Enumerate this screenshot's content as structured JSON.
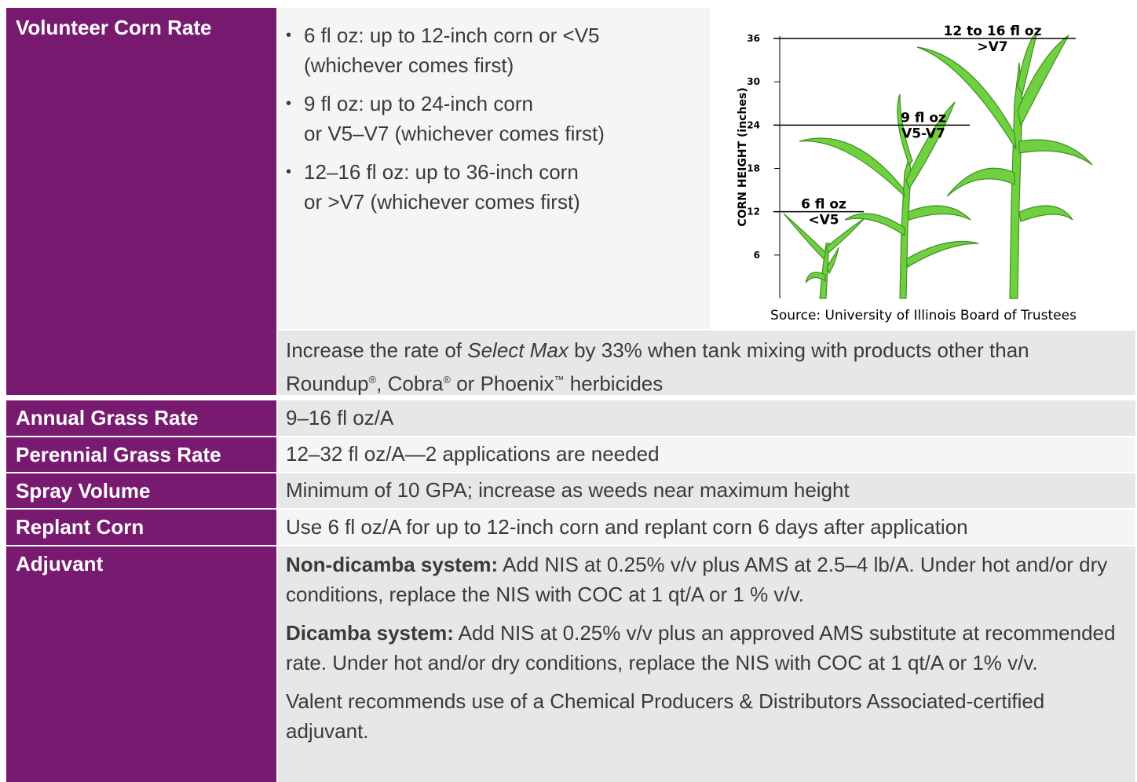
{
  "table": {
    "rows": [
      {
        "label": "Volunteer Corn Rate",
        "bullets": [
          [
            "6 fl oz: up to 12-inch corn or <V5",
            "(whichever comes first)"
          ],
          [
            "9 fl oz: up to 24-inch corn",
            "or V5–V7 (whichever comes first)"
          ],
          [
            "12–16 fl oz: up to 36-inch corn",
            "or >V7 (whichever comes first)"
          ]
        ],
        "figure": {
          "y_axis_label": "CORN HEIGHT (inches)",
          "ylim": [
            0,
            36
          ],
          "yticks": [
            6,
            12,
            18,
            24,
            30,
            36
          ],
          "annotations": [
            {
              "lines": [
                "12 to 16 fl oz",
                ">V7"
              ],
              "height": 36
            },
            {
              "lines": [
                "9 fl oz",
                "V5-V7"
              ],
              "height": 24
            },
            {
              "lines": [
                "6 fl oz",
                "<V5"
              ],
              "height": 12
            }
          ],
          "source": "Source: University of Illinois Board of Trustees"
        },
        "note": [
          "Increase the rate of ",
          "Select Max",
          " by 33% when tank mixing with products other than Roundup",
          "®",
          ", Cobra",
          "®",
          " or Phoenix",
          "™",
          " herbicides"
        ]
      },
      {
        "label": "Annual Grass Rate",
        "value": "9–16 fl oz/A"
      },
      {
        "label": "Perennial Grass Rate",
        "value": "12–32 fl oz/A—2 applications are needed"
      },
      {
        "label": "Spray Volume",
        "value": "Minimum of 10 GPA; increase as weeds near maximum height"
      },
      {
        "label": "Replant Corn",
        "value": "Use 6 fl oz/A for up to 12-inch corn and replant corn 6 days after application"
      },
      {
        "label": "Adjuvant",
        "paragraphs": [
          {
            "bold": "Non-dicamba system:",
            "text": " Add NIS at 0.25% v/v plus AMS at 2.5–4 lb/A. Under hot and/or dry conditions, replace the NIS with COC at 1 qt/A or 1 % v/v."
          },
          {
            "bold": "Dicamba system:",
            "text": " Add NIS at 0.25% v/v plus an approved AMS substitute at recommended rate. Under hot and/or dry conditions, replace the NIS with COC at 1 qt/A or 1% v/v."
          },
          {
            "text": "Valent recommends use of a Chemical Producers & Distributors Associated-certified adjuvant."
          }
        ]
      }
    ]
  }
}
